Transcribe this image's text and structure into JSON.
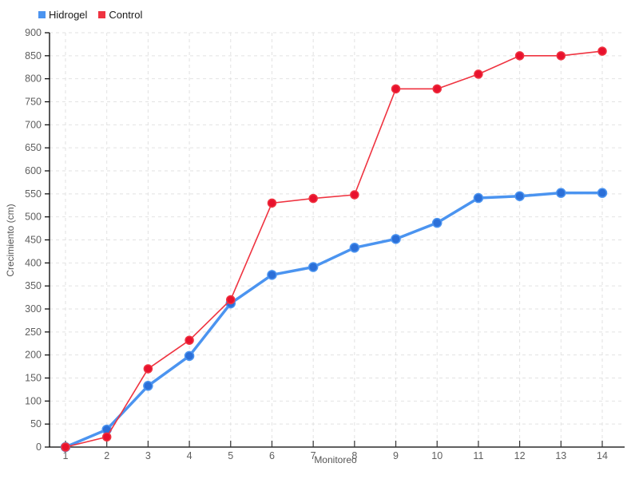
{
  "legend": {
    "items": [
      {
        "label": "Hidrogel"
      },
      {
        "label": "Control"
      }
    ]
  },
  "chart_data": {
    "type": "line",
    "title": "",
    "xlabel": "Monitoreo",
    "ylabel": "Crecimiento (cm)",
    "x": [
      1,
      2,
      3,
      4,
      5,
      6,
      7,
      8,
      9,
      10,
      11,
      12,
      13,
      14
    ],
    "series": [
      {
        "name": "Hidrogel",
        "line_color": "#4b94f0",
        "marker_color": "#2b6fd8",
        "line_width": 3.5,
        "marker_radius": 5.5,
        "values": [
          0,
          38,
          133,
          198,
          312,
          374,
          391,
          433,
          452,
          487,
          541,
          545,
          552,
          552
        ]
      },
      {
        "name": "Control",
        "line_color": "#ef3340",
        "marker_color": "#e8112d",
        "line_width": 1.6,
        "marker_radius": 5,
        "values": [
          0,
          22,
          170,
          232,
          320,
          530,
          540,
          548,
          778,
          778,
          810,
          850,
          850,
          860
        ]
      }
    ],
    "ylim": [
      0,
      900
    ],
    "ytick_step": 50,
    "grid": true,
    "legend_position": "top-left",
    "grid_color": "#e2e2e2",
    "axis_color": "#000000",
    "tick_label_color": "#5f5f5f"
  }
}
